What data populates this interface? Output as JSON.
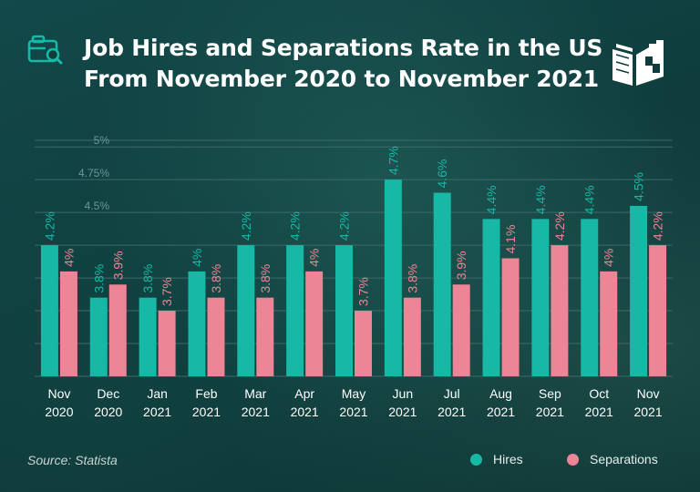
{
  "title": {
    "line1": "Job Hires and Separations Rate in the US",
    "line2": "From November 2020 to November 2021"
  },
  "source": "Source: Statista",
  "colors": {
    "hires": "#17b8a6",
    "separations": "#ec8595",
    "grid": "#3e6a68",
    "tick": "#6e9693",
    "axis_label": "#ffffff"
  },
  "icons": {
    "header": "briefcase-search-icon",
    "brand": "book-logo-icon"
  },
  "chart_data": {
    "type": "bar",
    "categories": [
      [
        "Nov",
        "2020"
      ],
      [
        "Dec",
        "2020"
      ],
      [
        "Jan",
        "2021"
      ],
      [
        "Feb",
        "2021"
      ],
      [
        "Mar",
        "2021"
      ],
      [
        "Apr",
        "2021"
      ],
      [
        "May",
        "2021"
      ],
      [
        "Jun",
        "2021"
      ],
      [
        "Jul",
        "2021"
      ],
      [
        "Aug",
        "2021"
      ],
      [
        "Sep",
        "2021"
      ],
      [
        "Oct",
        "2021"
      ],
      [
        "Nov",
        "2021"
      ]
    ],
    "series": [
      {
        "name": "Hires",
        "values": [
          4.2,
          3.8,
          3.8,
          4.0,
          4.2,
          4.2,
          4.2,
          4.7,
          4.6,
          4.4,
          4.4,
          4.4,
          4.5
        ]
      },
      {
        "name": "Separations",
        "values": [
          4.0,
          3.9,
          3.7,
          3.8,
          3.8,
          4.0,
          3.7,
          3.8,
          3.9,
          4.1,
          4.2,
          4.0,
          4.2
        ]
      }
    ],
    "ytick_labels": [
      "4.5%",
      "4.75%",
      "5%"
    ],
    "yticks": [
      4.5,
      4.75,
      5.0
    ],
    "ylim": [
      3.2,
      5.0
    ],
    "grid": true,
    "legend": "bottom-right"
  }
}
